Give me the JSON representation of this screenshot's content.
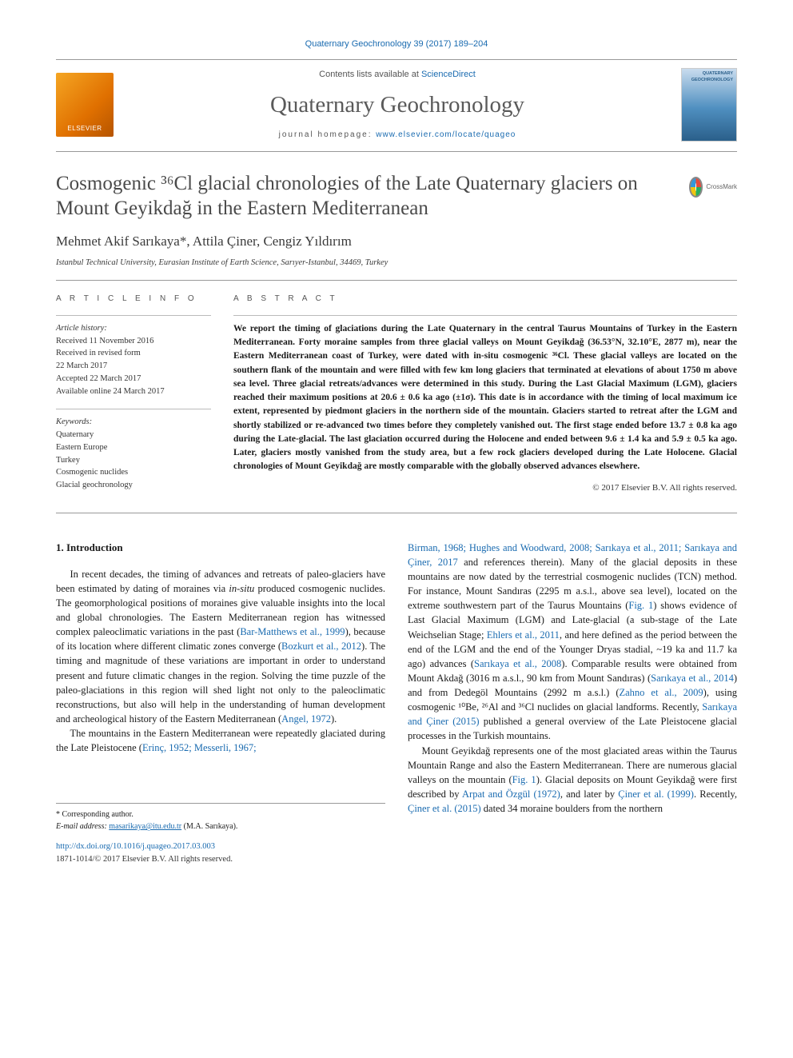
{
  "citation": "Quaternary Geochronology 39 (2017) 189–204",
  "header": {
    "contents_prefix": "Contents lists available at ",
    "contents_link": "ScienceDirect",
    "journal_name": "Quaternary Geochronology",
    "homepage_prefix": "journal homepage: ",
    "homepage_url": "www.elsevier.com/locate/quageo",
    "publisher_logo_text": "ELSEVIER"
  },
  "crossmark_label": "CrossMark",
  "title": "Cosmogenic ³⁶Cl glacial chronologies of the Late Quaternary glaciers on Mount Geyikdağ in the Eastern Mediterranean",
  "authors": "Mehmet Akif Sarıkaya*, Attila Çiner, Cengiz Yıldırım",
  "affiliation": "Istanbul Technical University, Eurasian Institute of Earth Science, Sarıyer-Istanbul, 34469, Turkey",
  "article_info": {
    "label": "A R T I C L E   I N F O",
    "history_header": "Article history:",
    "history": [
      "Received 11 November 2016",
      "Received in revised form",
      "22 March 2017",
      "Accepted 22 March 2017",
      "Available online 24 March 2017"
    ],
    "keywords_header": "Keywords:",
    "keywords": [
      "Quaternary",
      "Eastern Europe",
      "Turkey",
      "Cosmogenic nuclides",
      "Glacial geochronology"
    ]
  },
  "abstract": {
    "label": "A B S T R A C T",
    "text": "We report the timing of glaciations during the Late Quaternary in the central Taurus Mountains of Turkey in the Eastern Mediterranean. Forty moraine samples from three glacial valleys on Mount Geyikdağ (36.53°N, 32.10°E, 2877 m), near the Eastern Mediterranean coast of Turkey, were dated with in-situ cosmogenic ³⁶Cl. These glacial valleys are located on the southern flank of the mountain and were filled with few km long glaciers that terminated at elevations of about 1750 m above sea level. Three glacial retreats/advances were determined in this study. During the Last Glacial Maximum (LGM), glaciers reached their maximum positions at 20.6 ± 0.6 ka ago (±1σ). This date is in accordance with the timing of local maximum ice extent, represented by piedmont glaciers in the northern side of the mountain. Glaciers started to retreat after the LGM and shortly stabilized or re-advanced two times before they completely vanished out. The first stage ended before 13.7 ± 0.8 ka ago during the Late-glacial. The last glaciation occurred during the Holocene and ended between 9.6 ± 1.4 ka and 5.9 ± 0.5 ka ago. Later, glaciers mostly vanished from the study area, but a few rock glaciers developed during the Late Holocene. Glacial chronologies of Mount Geyikdağ are mostly comparable with the globally observed advances elsewhere.",
    "copyright": "© 2017 Elsevier B.V. All rights reserved."
  },
  "body": {
    "section_heading": "1.  Introduction",
    "col1_p1_a": "In recent decades, the timing of advances and retreats of paleo-glaciers have been estimated by dating of moraines via ",
    "col1_p1_insitu": "in-situ",
    "col1_p1_b": " produced cosmogenic nuclides. The geomorphological positions of moraines give valuable insights into the local and global chronologies. The Eastern Mediterranean region has witnessed complex paleoclimatic variations in the past (",
    "col1_ref1": "Bar-Matthews et al., 1999",
    "col1_p1_c": "), because of its location where different climatic zones converge (",
    "col1_ref2": "Bozkurt et al., 2012",
    "col1_p1_d": "). The timing and magnitude of these variations are important in order to understand present and future climatic changes in the region. Solving the time puzzle of the paleo-glaciations in this region will shed light not only to the paleoclimatic reconstructions, but also will help in the understanding of human development and archeological history of the Eastern Mediterranean (",
    "col1_ref3": "Angel, 1972",
    "col1_p1_e": ").",
    "col1_p2_a": "The mountains in the Eastern Mediterranean were repeatedly glaciated during the Late Pleistocene (",
    "col1_ref4": "Erinç, 1952; Messerli, 1967;",
    "col2_ref_cont": "Birman, 1968; Hughes and Woodward, 2008; Sarıkaya et al., 2011; Sarıkaya and Çiner, 2017",
    "col2_p1_a": " and references therein). Many of the glacial deposits in these mountains are now dated by the terrestrial cosmogenic nuclides (TCN) method. For instance, Mount Sandıras (2295 m a.s.l., above sea level), located on the extreme southwestern part of the Taurus Mountains (",
    "col2_fig1": "Fig. 1",
    "col2_p1_b": ") shows evidence of Last Glacial Maximum (LGM) and Late-glacial (a sub-stage of the Late Weichselian Stage; ",
    "col2_ref5": "Ehlers et al., 2011",
    "col2_p1_c": ", and here defined as the period between the end of the LGM and the end of the Younger Dryas stadial, ~19 ka and 11.7 ka ago) advances (",
    "col2_ref6": "Sarıkaya et al., 2008",
    "col2_p1_d": "). Comparable results were obtained from Mount Akdağ (3016 m a.s.l., 90 km from Mount Sandıras) (",
    "col2_ref7": "Sarıkaya et al., 2014",
    "col2_p1_e": ") and from Dedegöl Mountains (2992 m a.s.l.) (",
    "col2_ref8": "Zahno et al., 2009",
    "col2_p1_f": "), using cosmogenic ¹⁰Be, ²⁶Al and ³⁶Cl nuclides on glacial landforms. Recently, ",
    "col2_ref9": "Sarıkaya and Çiner (2015)",
    "col2_p1_g": " published a general overview of the Late Pleistocene glacial processes in the Turkish mountains.",
    "col2_p2_a": "Mount Geyikdağ represents one of the most glaciated areas within the Taurus Mountain Range and also the Eastern Mediterranean. There are numerous glacial valleys on the mountain (",
    "col2_fig1b": "Fig. 1",
    "col2_p2_b": "). Glacial deposits on Mount Geyikdağ were first described by ",
    "col2_ref10": "Arpat and Özgül (1972)",
    "col2_p2_c": ", and later by ",
    "col2_ref11": "Çiner et al. (1999)",
    "col2_p2_d": ". Recently, ",
    "col2_ref12": "Çiner et al. (2015)",
    "col2_p2_e": " dated 34 moraine boulders from the northern"
  },
  "footnotes": {
    "corresponding": "* Corresponding author.",
    "email_label": "E-mail address: ",
    "email": "masarikaya@itu.edu.tr",
    "email_suffix": " (M.A. Sarıkaya).",
    "doi": "http://dx.doi.org/10.1016/j.quageo.2017.03.003",
    "pub": "1871-1014/© 2017 Elsevier B.V. All rights reserved."
  },
  "colors": {
    "link": "#1a6bb0",
    "text": "#1a1a1a",
    "rule": "#999999",
    "muted": "#555555"
  }
}
